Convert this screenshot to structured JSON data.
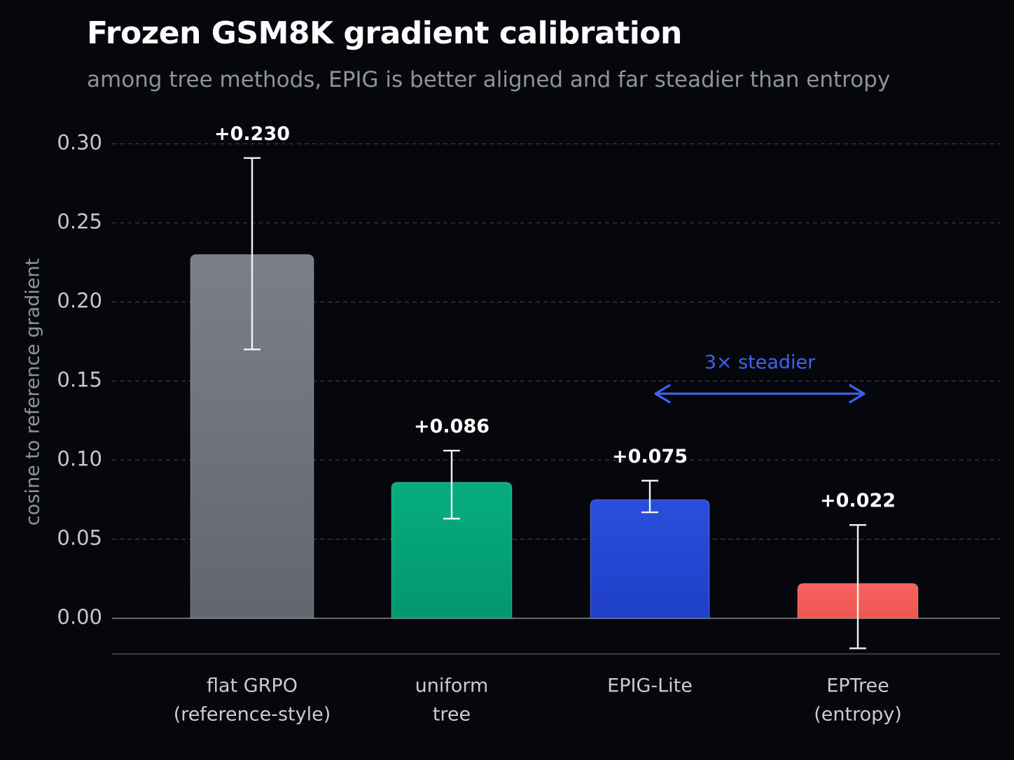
{
  "chart_data": {
    "type": "bar",
    "title": "Frozen GSM8K gradient calibration",
    "subtitle": "among tree methods, EPIG is better aligned and far steadier than entropy",
    "ylabel": "cosine to reference gradient",
    "xlabel": "",
    "ylim": [
      -0.023,
      0.305
    ],
    "yticks": [
      "0.00",
      "0.05",
      "0.10",
      "0.15",
      "0.20",
      "0.25",
      "0.30"
    ],
    "grid": true,
    "legend": "none",
    "categories": [
      [
        "flat GRPO",
        "(reference-style)"
      ],
      [
        "uniform",
        "tree"
      ],
      [
        "EPIG-Lite"
      ],
      [
        "EPTree",
        "(entropy)"
      ]
    ],
    "values": [
      0.23,
      0.086,
      0.075,
      0.022
    ],
    "value_labels": [
      "+0.230",
      "+0.086",
      "+0.075",
      "+0.022"
    ],
    "error_low": [
      0.17,
      0.063,
      0.067,
      -0.019
    ],
    "error_high": [
      0.291,
      0.106,
      0.087,
      0.059
    ],
    "bar_colors": [
      "#6f737c",
      "#05a57a",
      "#2347d4",
      "#f45a56"
    ],
    "annotation": {
      "text": "3× steadier",
      "y": 0.142,
      "from": "EPIG-Lite",
      "to": "EPTree",
      "color": "#3d63f0"
    }
  }
}
